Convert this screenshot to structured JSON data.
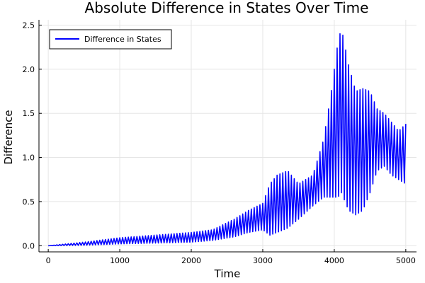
{
  "chart_data": {
    "type": "line",
    "title": "Absolute Difference in States Over Time",
    "xlabel": "Time",
    "ylabel": "Difference",
    "xlim": [
      -130,
      5150
    ],
    "ylim": [
      -0.07,
      2.56
    ],
    "xticks": [
      0,
      1000,
      2000,
      3000,
      4000,
      5000
    ],
    "yticks": [
      0.0,
      0.5,
      1.0,
      1.5,
      2.0,
      2.5
    ],
    "xtick_labels": [
      "0",
      "1000",
      "2000",
      "3000",
      "4000",
      "5000"
    ],
    "ytick_labels": [
      "0.0",
      "0.5",
      "1.0",
      "1.5",
      "2.0",
      "2.5"
    ],
    "grid": true,
    "legend": {
      "position": "top-left",
      "entries": [
        "Difference in States"
      ]
    },
    "series": [
      {
        "name": "Difference in States",
        "color": "#0000ff",
        "oscillation_period": 40,
        "x": [
          0,
          500,
          1000,
          1500,
          2000,
          2300,
          2600,
          2800,
          3000,
          3100,
          3200,
          3350,
          3500,
          3700,
          3850,
          3950,
          4050,
          4100,
          4200,
          4300,
          4400,
          4500,
          4600,
          4700,
          4800,
          4900,
          5000
        ],
        "min": [
          0.0,
          0.005,
          0.02,
          0.03,
          0.04,
          0.06,
          0.1,
          0.15,
          0.18,
          0.12,
          0.15,
          0.2,
          0.3,
          0.45,
          0.55,
          0.55,
          0.55,
          0.6,
          0.4,
          0.35,
          0.4,
          0.6,
          0.85,
          0.9,
          0.8,
          0.75,
          0.7
        ],
        "max": [
          0.0,
          0.04,
          0.09,
          0.12,
          0.15,
          0.18,
          0.3,
          0.4,
          0.48,
          0.7,
          0.8,
          0.85,
          0.7,
          0.8,
          1.2,
          1.7,
          2.3,
          2.47,
          2.05,
          1.75,
          1.78,
          1.75,
          1.55,
          1.5,
          1.4,
          1.3,
          1.38
        ]
      }
    ]
  }
}
